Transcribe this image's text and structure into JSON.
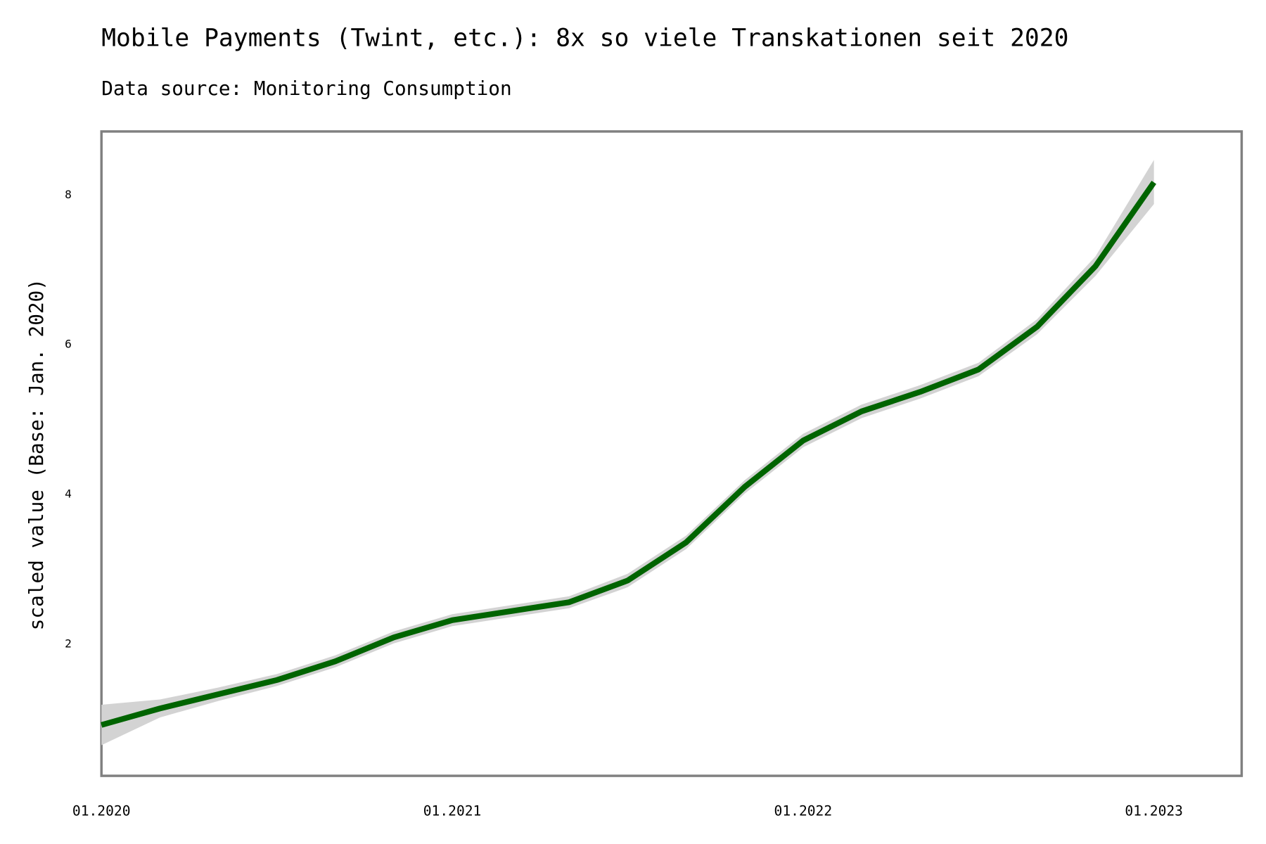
{
  "chart_data": {
    "type": "line",
    "title": "Mobile Payments (Twint, etc.): 8x so viele Transkationen seit 2020",
    "subtitle": "Data source: Monitoring Consumption",
    "y_label": "scaled value (Base: Jan. 2020)",
    "x": [
      "2020-01",
      "2020-03",
      "2020-05",
      "2020-07",
      "2020-09",
      "2020-11",
      "2021-01",
      "2021-03",
      "2021-05",
      "2021-07",
      "2021-09",
      "2021-11",
      "2022-01",
      "2022-03",
      "2022-05",
      "2022-07",
      "2022-09",
      "2022-11",
      "2023-01"
    ],
    "series": [
      {
        "color": "#006400",
        "values": [
          0.92,
          1.14,
          1.33,
          1.52,
          1.77,
          2.09,
          2.32,
          2.44,
          2.56,
          2.85,
          3.36,
          4.1,
          4.72,
          5.11,
          5.37,
          5.67,
          6.24,
          7.05,
          8.17
        ],
        "band_lower": [
          0.65,
          1.02,
          1.24,
          1.44,
          1.69,
          2.01,
          2.24,
          2.36,
          2.48,
          2.76,
          3.27,
          4.01,
          4.63,
          5.02,
          5.28,
          5.58,
          6.14,
          6.92,
          7.88
        ],
        "band_upper": [
          1.19,
          1.26,
          1.42,
          1.6,
          1.85,
          2.17,
          2.4,
          2.52,
          2.64,
          2.94,
          3.45,
          4.19,
          4.81,
          5.2,
          5.46,
          5.76,
          6.34,
          7.18,
          8.47
        ],
        "band_color": "#d3d3d3"
      }
    ],
    "xlim": [
      "2020-01",
      "2023-04"
    ],
    "xticks": [
      {
        "value": "2020-01",
        "label": "01.2020"
      },
      {
        "value": "2021-01",
        "label": "01.2021"
      },
      {
        "value": "2022-01",
        "label": "01.2022"
      },
      {
        "value": "2023-01",
        "label": "01.2023"
      }
    ],
    "ylim": [
      0.24,
      8.85
    ],
    "yticks": [
      2,
      4,
      6,
      8
    ]
  }
}
